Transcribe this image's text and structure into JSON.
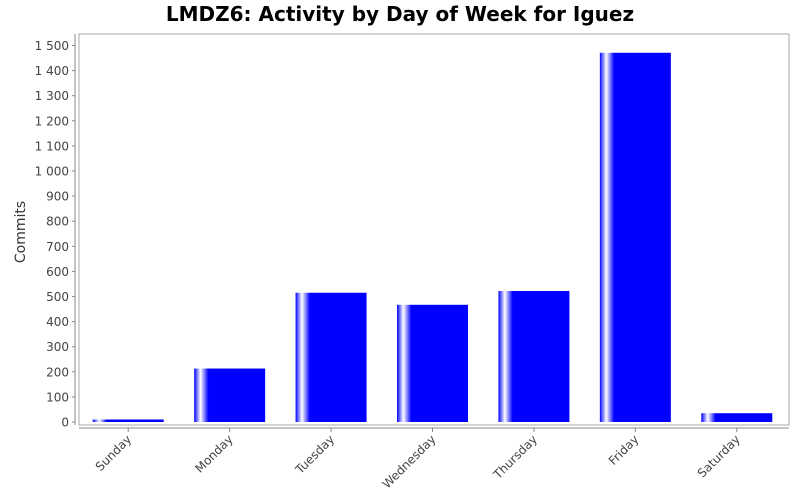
{
  "chart_data": {
    "type": "bar",
    "title": "LMDZ6: Activity by Day of Week for Iguez",
    "xlabel": "",
    "ylabel": "Commits",
    "categories": [
      "Sunday",
      "Monday",
      "Tuesday",
      "Wednesday",
      "Thursday",
      "Friday",
      "Saturday"
    ],
    "values": [
      10,
      213,
      515,
      467,
      522,
      1471,
      35
    ],
    "ylim": [
      0,
      1550
    ],
    "yticks": [
      0,
      100,
      200,
      300,
      400,
      500,
      600,
      700,
      800,
      900,
      1000,
      1100,
      1200,
      1300,
      1400,
      1500
    ],
    "ytick_labels": [
      "0",
      "100",
      "200",
      "300",
      "400",
      "500",
      "600",
      "700",
      "800",
      "900",
      "1 000",
      "1 100",
      "1 200",
      "1 300",
      "1 400",
      "1 500"
    ],
    "grid": false,
    "legend": "none",
    "bar_color": "#0000ff"
  }
}
